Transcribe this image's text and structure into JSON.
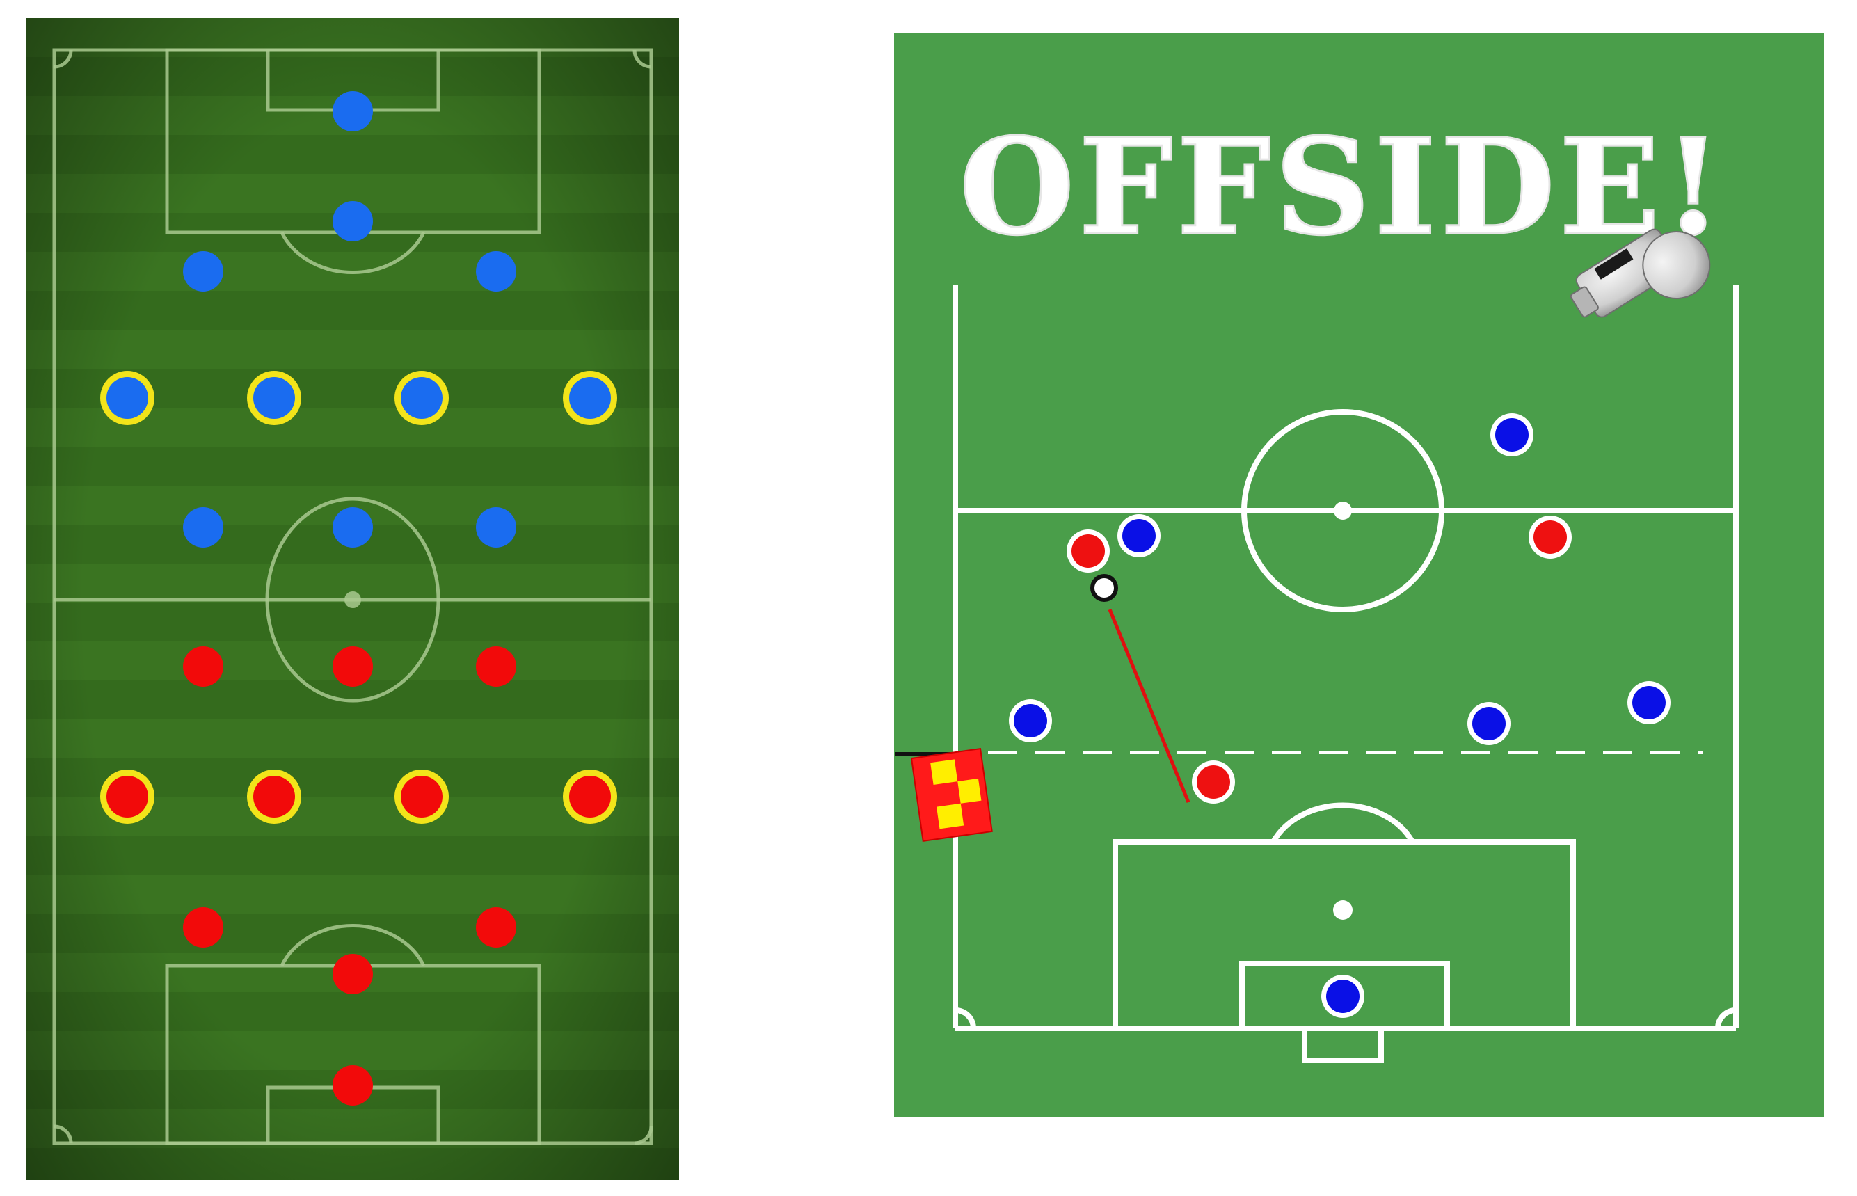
{
  "formation_board": {
    "pitch_colors": {
      "dark": "#2c5a17",
      "light": "#3f7c22",
      "line": "#b9d5a4"
    },
    "team_blue": {
      "color": "#1a6cf0",
      "players": [
        {
          "role": "goalkeeper",
          "ring": false
        },
        {
          "role": "defender",
          "ring": false
        },
        {
          "role": "defender",
          "ring": false
        },
        {
          "role": "defender",
          "ring": false
        },
        {
          "role": "midfielder",
          "ring": true
        },
        {
          "role": "midfielder",
          "ring": true
        },
        {
          "role": "midfielder",
          "ring": true
        },
        {
          "role": "midfielder",
          "ring": true
        },
        {
          "role": "forward",
          "ring": false
        },
        {
          "role": "forward",
          "ring": false
        },
        {
          "role": "forward",
          "ring": false
        }
      ]
    },
    "team_red": {
      "color": "#f20a0a",
      "players": [
        {
          "role": "forward",
          "ring": false
        },
        {
          "role": "forward",
          "ring": false
        },
        {
          "role": "forward",
          "ring": false
        },
        {
          "role": "midfielder",
          "ring": true
        },
        {
          "role": "midfielder",
          "ring": true
        },
        {
          "role": "midfielder",
          "ring": true
        },
        {
          "role": "midfielder",
          "ring": true
        },
        {
          "role": "defender",
          "ring": false
        },
        {
          "role": "defender",
          "ring": false
        },
        {
          "role": "defender",
          "ring": false
        },
        {
          "role": "goalkeeper",
          "ring": false
        }
      ]
    },
    "ring_color": "#f2e41a"
  },
  "offside_poster": {
    "title": "OFFSIDE!",
    "background": "#4a9e4a",
    "line_color": "#ffffff",
    "team_blue_color": "#0a10e6",
    "team_red_color": "#ee1111",
    "ball_icon": "ball-icon",
    "flag_icon": "assistant-referee-flag-icon",
    "flag_colors": [
      "#ff1a1a",
      "#ffee00"
    ],
    "whistle_icon": "whistle-icon",
    "pass_line_color": "#e01010",
    "offside_line_style": "dashed"
  }
}
